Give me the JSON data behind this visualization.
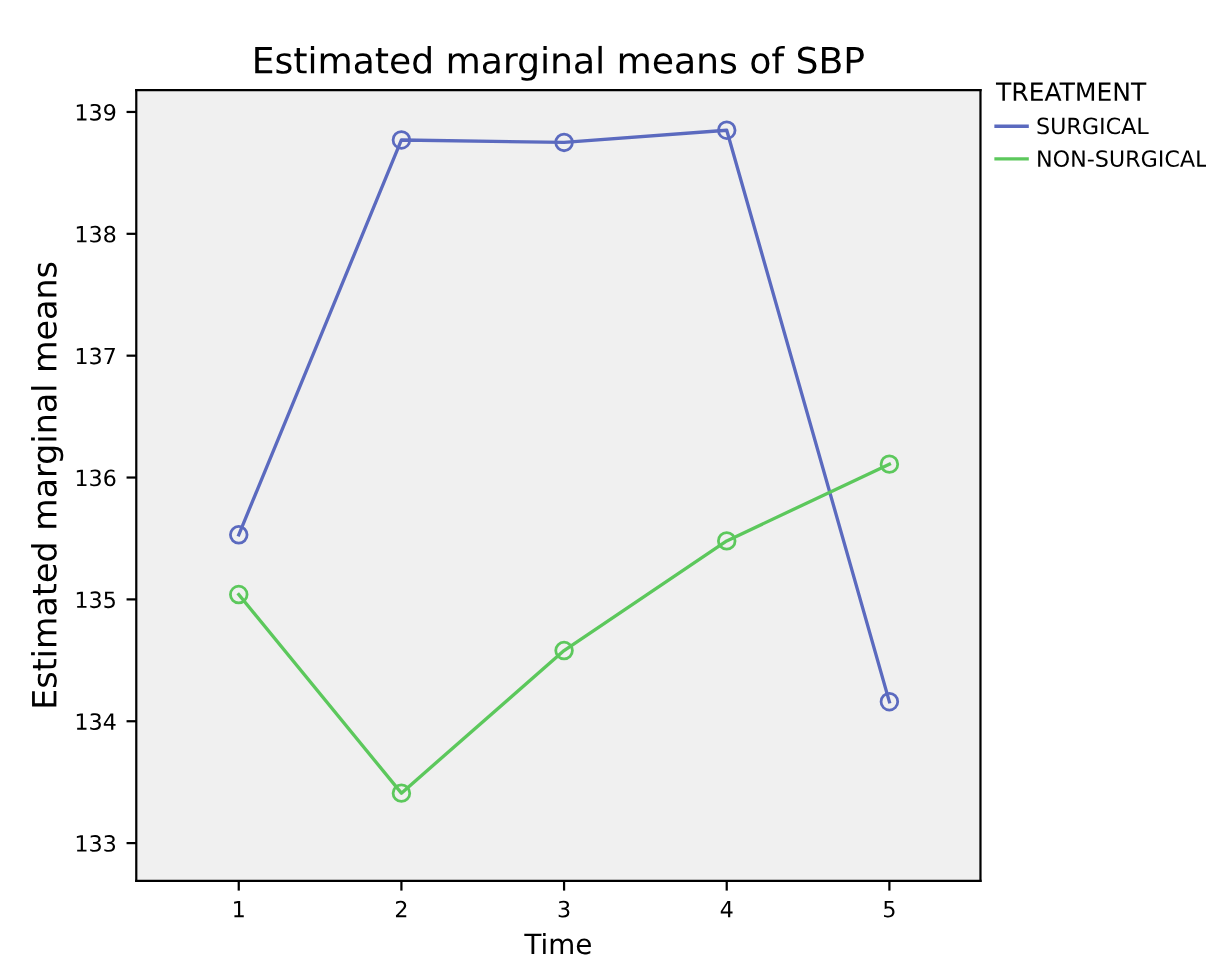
{
  "chart_data": {
    "type": "line",
    "title": "Estimated marginal means of SBP",
    "xlabel": "Time",
    "ylabel": "Estimated marginal means",
    "legend_title": "TREATMENT",
    "legend": "top right",
    "marker": "circle",
    "line_style": "solid",
    "grid": false,
    "x": [
      1,
      2,
      3,
      4,
      5
    ],
    "xlim": [
      0.37,
      5.56
    ],
    "xticks": [
      1,
      2,
      3,
      4,
      5
    ],
    "ylim": [
      132.69,
      139.18
    ],
    "yticks": [
      133,
      134,
      135,
      136,
      137,
      138,
      139
    ],
    "series": [
      {
        "name": "SURGICAL",
        "color": "#5b6abf",
        "values": [
          135.53,
          138.77,
          138.75,
          138.85,
          134.16
        ]
      },
      {
        "name": "NON-SURGICAL",
        "color": "#5cc85c",
        "values": [
          135.04,
          133.41,
          134.58,
          135.48,
          136.11
        ]
      }
    ]
  }
}
